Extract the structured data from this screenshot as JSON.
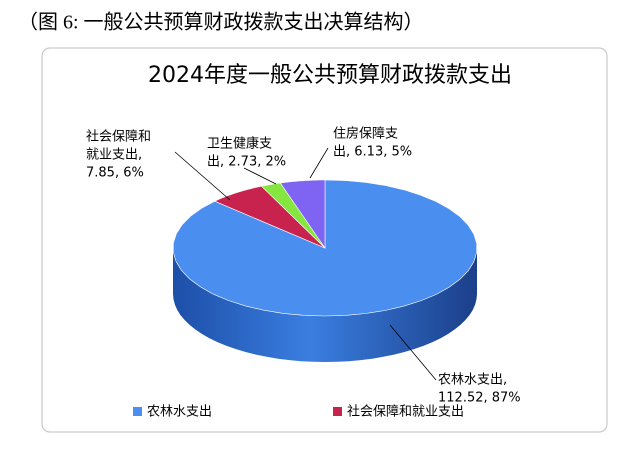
{
  "caption": "（图 6:  一般公共预算财政拨款支出决算结构）",
  "chart_data": {
    "type": "pie3d",
    "title": "2024年度一般公共预算财政拨款支出",
    "categories": [
      "农林水支出",
      "社会保障和就业支出",
      "卫生健康支出",
      "住房保障支出"
    ],
    "values": [
      112.52,
      7.85,
      2.73,
      6.13
    ],
    "colors": [
      "#4a8ff0",
      "#c8234f",
      "#86e640",
      "#7f63f2"
    ],
    "label_lines": [
      [
        "农林水支出,",
        "112.52, 87%"
      ],
      [
        "社会保障和",
        "就业支出,",
        "7.85, 6%"
      ],
      [
        "卫生健康支",
        "出, 2.73, 2%"
      ],
      [
        "住房保障支",
        "出, 6.13, 5%"
      ]
    ],
    "legend": [
      "农林水支出",
      "社会保障和就业支出"
    ],
    "legend_position": "bottom"
  }
}
